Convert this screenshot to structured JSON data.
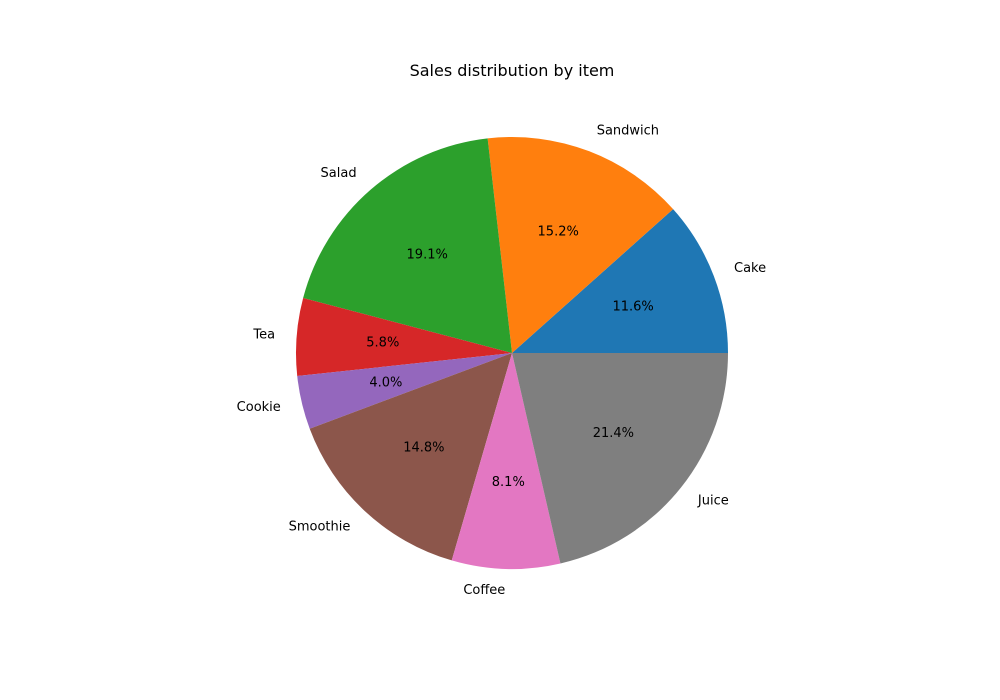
{
  "chart_data": {
    "type": "pie",
    "title": "Sales distribution by item",
    "counterclockwise": true,
    "start_angle_deg": 0,
    "slices": [
      {
        "label": "Cake",
        "value": 11.6,
        "pct_label": "11.6%",
        "color": "#1f77b4"
      },
      {
        "label": "Sandwich",
        "value": 15.2,
        "pct_label": "15.2%",
        "color": "#ff7f0e"
      },
      {
        "label": "Salad",
        "value": 19.1,
        "pct_label": "19.1%",
        "color": "#2ca02c"
      },
      {
        "label": "Tea",
        "value": 5.8,
        "pct_label": "5.8%",
        "color": "#d62728"
      },
      {
        "label": "Cookie",
        "value": 4.0,
        "pct_label": "4.0%",
        "color": "#9467bd"
      },
      {
        "label": "Smoothie",
        "value": 14.8,
        "pct_label": "14.8%",
        "color": "#8c564b"
      },
      {
        "label": "Coffee",
        "value": 8.1,
        "pct_label": "8.1%",
        "color": "#e377c2"
      },
      {
        "label": "Juice",
        "value": 21.4,
        "pct_label": "21.4%",
        "color": "#7f7f7f"
      }
    ]
  }
}
